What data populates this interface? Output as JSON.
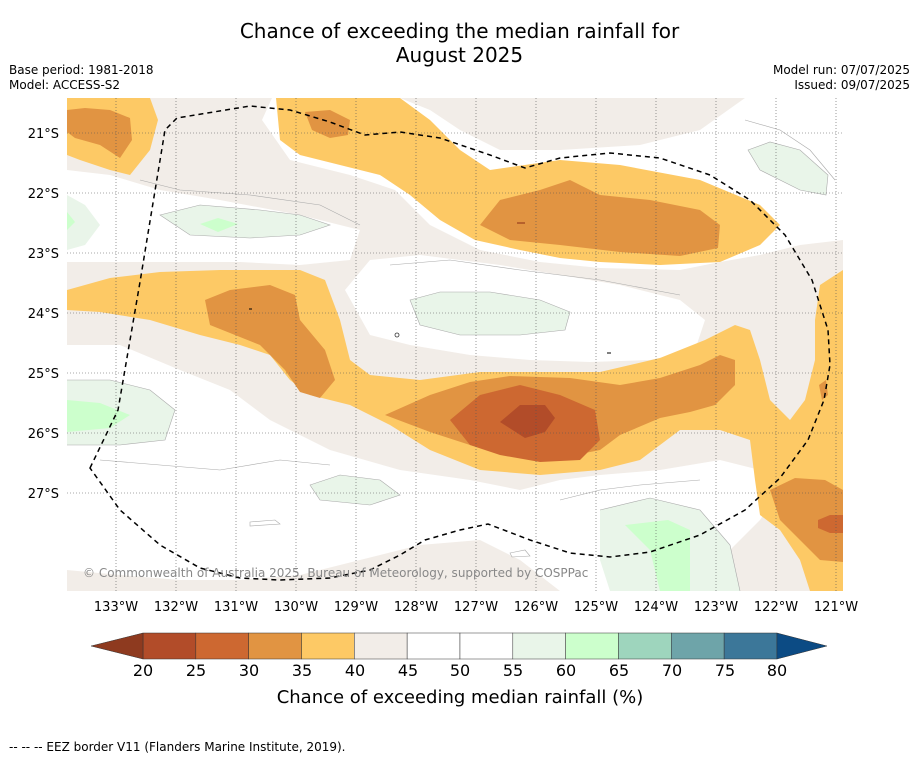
{
  "title": {
    "line1": "Chance of exceeding the median rainfall for",
    "line2": "August 2025"
  },
  "meta_left": {
    "base_period": "Base period: 1981-2018",
    "model": "Model: ACCESS-S2"
  },
  "meta_right": {
    "model_run": "Model run: 07/07/2025",
    "issued": "Issued: 09/07/2025"
  },
  "map": {
    "lat_labels": [
      "21°S",
      "22°S",
      "23°S",
      "24°S",
      "25°S",
      "26°S",
      "27°S"
    ],
    "lon_labels": [
      "133°W",
      "132°W",
      "131°W",
      "130°W",
      "129°W",
      "128°W",
      "127°W",
      "126°W",
      "125°W",
      "124°W",
      "123°W",
      "122°W",
      "121°W"
    ],
    "copyright": "© Commonwealth of Australia 2025, Bureau of Meteorology, supported by COSPPac"
  },
  "colorbar": {
    "tick_labels": [
      "20",
      "25",
      "30",
      "35",
      "40",
      "45",
      "50",
      "55",
      "60",
      "65",
      "70",
      "75",
      "80"
    ],
    "title": "Chance of exceeding median rainfall (%)",
    "colors": {
      "below20": "#8e3a1f",
      "c20_25": "#b24c29",
      "c25_30": "#cd6831",
      "c30_35": "#e19442",
      "c35_40": "#fdc965",
      "c40_45": "#f2ede8",
      "c45_50": "#ffffff",
      "c50_55": "#ffffff",
      "c55_60": "#e9f5e9",
      "c60_65": "#ccffcc",
      "c65_70": "#9ed5bd",
      "c70_75": "#6ea4a9",
      "c75_80": "#3c7799",
      "above80": "#0c4b84"
    }
  },
  "legend": {
    "eez": "--  --  -- EEZ border V11 (Flanders Marine Institute, 2019)."
  }
}
